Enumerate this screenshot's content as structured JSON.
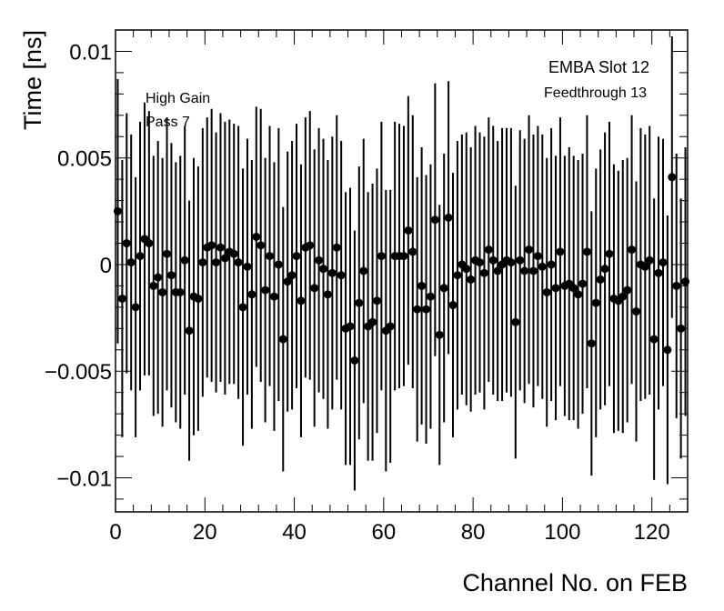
{
  "chart_data": {
    "type": "scatter",
    "title": "",
    "xlabel": "Channel No. on FEB",
    "ylabel": "Time [ns]",
    "xlim": [
      0,
      128
    ],
    "ylim": [
      -0.0116,
      0.011
    ],
    "x_ticks": [
      {
        "value": 0,
        "label": "0"
      },
      {
        "value": 20,
        "label": "20"
      },
      {
        "value": 40,
        "label": "40"
      },
      {
        "value": 60,
        "label": "60"
      },
      {
        "value": 80,
        "label": "80"
      },
      {
        "value": 100,
        "label": "100"
      },
      {
        "value": 120,
        "label": "120"
      }
    ],
    "y_ticks": [
      {
        "value": 0.01,
        "label": "0.01"
      },
      {
        "value": 0.005,
        "label": "0.005"
      },
      {
        "value": 0,
        "label": "0"
      },
      {
        "value": -0.005,
        "label": "−0.005"
      },
      {
        "value": -0.01,
        "label": "−0.01"
      }
    ],
    "grid": false,
    "marker_color": "#000000",
    "annotations": {
      "left": [
        "High Gain",
        "Pass 7"
      ],
      "right": [
        "EMBA Slot 12",
        "Feedthrough 13"
      ]
    },
    "x": [
      0,
      1,
      2,
      3,
      4,
      5,
      6,
      7,
      8,
      9,
      10,
      11,
      12,
      13,
      14,
      15,
      16,
      17,
      18,
      19,
      20,
      21,
      22,
      23,
      24,
      25,
      26,
      27,
      28,
      29,
      30,
      31,
      32,
      33,
      34,
      35,
      36,
      37,
      38,
      39,
      40,
      41,
      42,
      43,
      44,
      45,
      46,
      47,
      48,
      49,
      50,
      51,
      52,
      53,
      54,
      55,
      56,
      57,
      58,
      59,
      60,
      61,
      62,
      63,
      64,
      65,
      66,
      67,
      68,
      69,
      70,
      71,
      72,
      73,
      74,
      75,
      76,
      77,
      78,
      79,
      80,
      81,
      82,
      83,
      84,
      85,
      86,
      87,
      88,
      89,
      90,
      91,
      92,
      93,
      94,
      95,
      96,
      97,
      98,
      99,
      100,
      101,
      102,
      103,
      104,
      105,
      106,
      107,
      108,
      109,
      110,
      111,
      112,
      113,
      114,
      115,
      116,
      117,
      118,
      119,
      120,
      121,
      122,
      123,
      124,
      125,
      126,
      127
    ],
    "y": [
      0.0025,
      -0.0016,
      0.001,
      0.0001,
      -0.002,
      0.0004,
      0.0012,
      0.001,
      -0.001,
      -0.0006,
      -0.0013,
      0.0005,
      -0.0005,
      -0.0013,
      -0.0013,
      0.0002,
      -0.0031,
      -0.0015,
      -0.0016,
      0.0001,
      0.0008,
      0.0009,
      0.0001,
      0.0008,
      0.0003,
      0.0006,
      0.0005,
      0.0001,
      -0.002,
      -0.0001,
      -0.0014,
      0.0013,
      0.0009,
      -0.0012,
      0.0004,
      -0.0015,
      0.0,
      -0.0035,
      -0.0008,
      -0.0005,
      0.0004,
      -0.0017,
      0.0008,
      0.0009,
      -0.0011,
      0.0002,
      -0.0002,
      -0.0014,
      -0.0004,
      0.0008,
      -0.0005,
      -0.003,
      -0.0029,
      -0.0045,
      -0.0018,
      -0.0003,
      -0.0029,
      -0.0027,
      -0.0017,
      0.0004,
      -0.0031,
      -0.0029,
      0.0004,
      0.0004,
      0.0004,
      0.0016,
      0.0006,
      -0.0021,
      -0.001,
      -0.0021,
      -0.0015,
      0.0021,
      -0.0033,
      -0.0011,
      0.0022,
      -0.0019,
      -0.0005,
      0.0,
      -0.0002,
      -0.0007,
      0.0002,
      0.0001,
      -0.0004,
      0.0007,
      0.0002,
      -0.0003,
      0.0,
      0.0002,
      0.0001,
      -0.0027,
      0.0002,
      -0.0003,
      0.0007,
      -0.0003,
      0.0004,
      -0.0001,
      -0.0013,
      0.0,
      -0.0011,
      0.0006,
      -0.001,
      -0.0009,
      -0.0011,
      -0.0014,
      -0.0009,
      0.0006,
      -0.0037,
      -0.0018,
      -0.0007,
      -0.0002,
      0.0005,
      -0.0016,
      -0.0017,
      -0.0015,
      -0.0012,
      0.0007,
      -0.0022,
      0.0,
      -0.0001,
      0.0002,
      -0.0035,
      -0.0004,
      0.0001,
      -0.004,
      0.0041,
      -0.001,
      -0.003,
      -0.0008
    ],
    "yerr": [
      0.0062,
      0.0065,
      0.0061,
      0.006,
      0.0061,
      0.0063,
      0.0064,
      0.0062,
      0.0061,
      0.0064,
      0.0063,
      0.0064,
      0.0062,
      0.0061,
      0.0064,
      0.0063,
      0.0061,
      0.0065,
      0.0062,
      0.0063,
      0.0061,
      0.0064,
      0.0061,
      0.0063,
      0.0064,
      0.0062,
      0.0061,
      0.0064,
      0.0065,
      0.006,
      0.0063,
      0.0061,
      0.0064,
      0.0062,
      0.0061,
      0.0063,
      0.0064,
      0.0062,
      0.0061,
      0.0063,
      0.0062,
      0.0064,
      0.0061,
      0.0063,
      0.0065,
      0.0062,
      0.0061,
      0.0063,
      0.0064,
      0.0062,
      0.0063,
      0.0064,
      0.0065,
      0.0061,
      0.0064,
      0.0062,
      0.0063,
      0.0065,
      0.0062,
      0.0063,
      0.0066,
      0.0064,
      0.0063,
      0.0062,
      0.0061,
      0.0063,
      0.0064,
      0.0062,
      0.0065,
      0.0063,
      0.0062,
      0.0064,
      0.0061,
      0.0063,
      0.0064,
      0.0062,
      0.0063,
      0.0061,
      0.0064,
      0.0062,
      0.0063,
      0.0061,
      0.0064,
      0.0062,
      0.0063,
      0.0061,
      0.0064,
      0.0062,
      0.0063,
      0.0064,
      0.0061,
      0.0062,
      0.0063,
      0.0064,
      0.0061,
      0.0062,
      0.0063,
      0.0064,
      0.0062,
      0.0063,
      0.0061,
      0.0064,
      0.0062,
      0.0063,
      0.0061,
      0.0064,
      0.0062,
      0.0063,
      0.0061,
      0.0064,
      0.0062,
      0.0063,
      0.0061,
      0.0064,
      0.0062,
      0.0063,
      0.0061,
      0.0064,
      0.0062,
      0.0063,
      0.0066,
      0.0064,
      0.0058,
      0.0063,
      0.0066,
      0.0062,
      0.0061,
      0.0063
    ]
  }
}
